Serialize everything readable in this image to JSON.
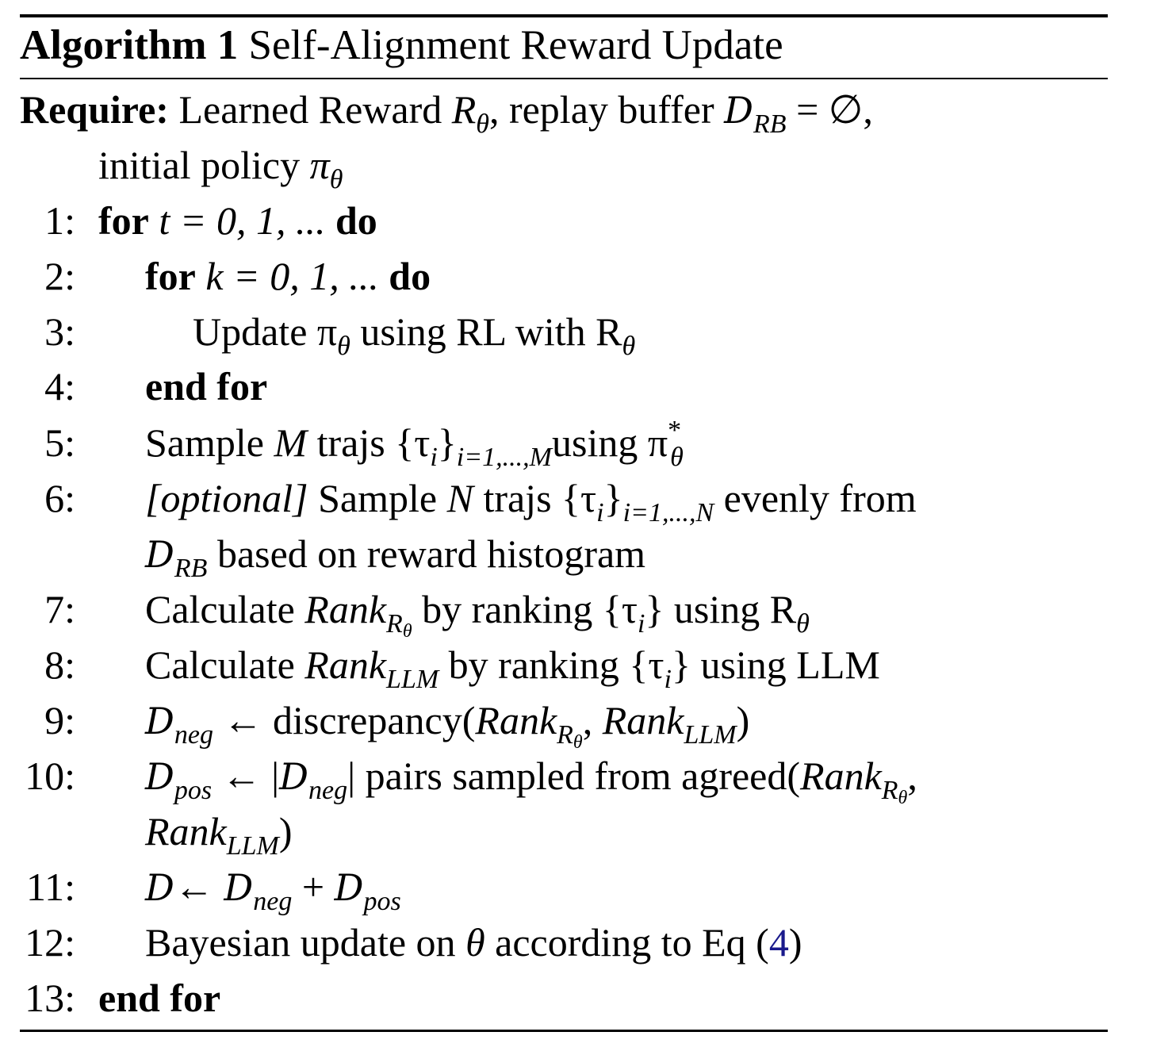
{
  "algorithm": {
    "label": "Algorithm 1",
    "title": "Self-Alignment Reward Update"
  },
  "require": {
    "label": "Require:",
    "text_a": "Learned Reward ",
    "R": "R",
    "theta": "θ",
    "text_b": ", replay buffer ",
    "D": "D",
    "RB": "RB",
    "eq_empty": " = ∅,",
    "text_c": "initial policy ",
    "pi": "π"
  },
  "steps": [
    {
      "num": "1:",
      "kw1": "for",
      "expr": " t = 0, 1, ... ",
      "kw2": "do"
    },
    {
      "num": "2:",
      "kw1": "for",
      "expr": " k = 0, 1, ... ",
      "kw2": "do"
    },
    {
      "num": "3:",
      "text": "Update π",
      "sub": "θ",
      "text2": " using RL with R",
      "sub2": "θ"
    },
    {
      "num": "4:",
      "kw": "end for"
    },
    {
      "num": "5:",
      "text": "Sample ",
      "M": "M",
      "text2": " trajs {τ",
      "i": "i",
      "close": "}",
      "range": "i=1,...,M",
      "text3": "using π",
      "sub": "θ",
      "sup": "*"
    },
    {
      "num": "6:",
      "opt": "[optional]",
      "text": " Sample ",
      "N": "N",
      "text2": " trajs {τ",
      "i": "i",
      "close": "}",
      "range": "i=1,...,N",
      "text3": " evenly from",
      "D": "D",
      "RB": "RB",
      "text4": " based on reward histogram"
    },
    {
      "num": "7:",
      "text": "Calculate ",
      "rank": "Rank",
      "sub": "R",
      "subsub": "θ",
      "text2": " by ranking {τ",
      "i": "i",
      "text3": "} using R",
      "sub2": "θ"
    },
    {
      "num": "8:",
      "text": "Calculate ",
      "rank": "Rank",
      "sub": "LLM",
      "text2": " by ranking {τ",
      "i": "i",
      "text3": "} using LLM"
    },
    {
      "num": "9:",
      "D": "D",
      "neg": "neg",
      "text": " ← discrepancy(",
      "rank": "Rank",
      "sub": "R",
      "subsub": "θ",
      "comma": ", ",
      "rank2": "Rank",
      "sub2": "LLM",
      "close": ")"
    },
    {
      "num": "10:",
      "D": "D",
      "pos": "pos",
      "text": " ← |",
      "neg": "neg",
      "text2": "| pairs sampled from agreed(",
      "rank": "Rank",
      "sub": "R",
      "subsub": "θ",
      "comma": ",",
      "rank2": "Rank",
      "sub2": "LLM",
      "close": ")"
    },
    {
      "num": "11:",
      "D": "D",
      "arrow": "← ",
      "neg": "neg",
      "plus": " + ",
      "pos": "pos"
    },
    {
      "num": "12:",
      "text": "Bayesian update on ",
      "theta": "θ",
      "text2": " according to Eq (",
      "ref": "4",
      "close": ")"
    },
    {
      "num": "13:",
      "kw": "end for"
    }
  ]
}
